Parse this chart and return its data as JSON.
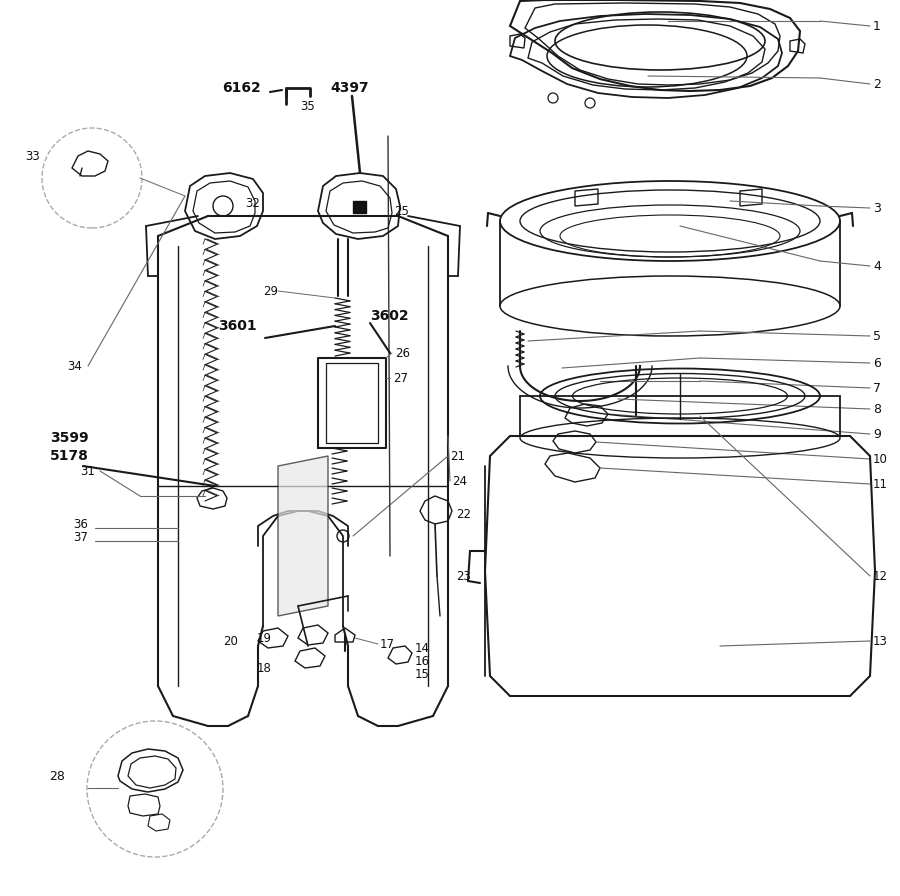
{
  "bg_color": "#ffffff",
  "lc": "#1a1a1a",
  "lc_light": "#888888",
  "lc_gray": "#aaaaaa",
  "figsize": [
    9.0,
    8.96
  ],
  "dpi": 100
}
